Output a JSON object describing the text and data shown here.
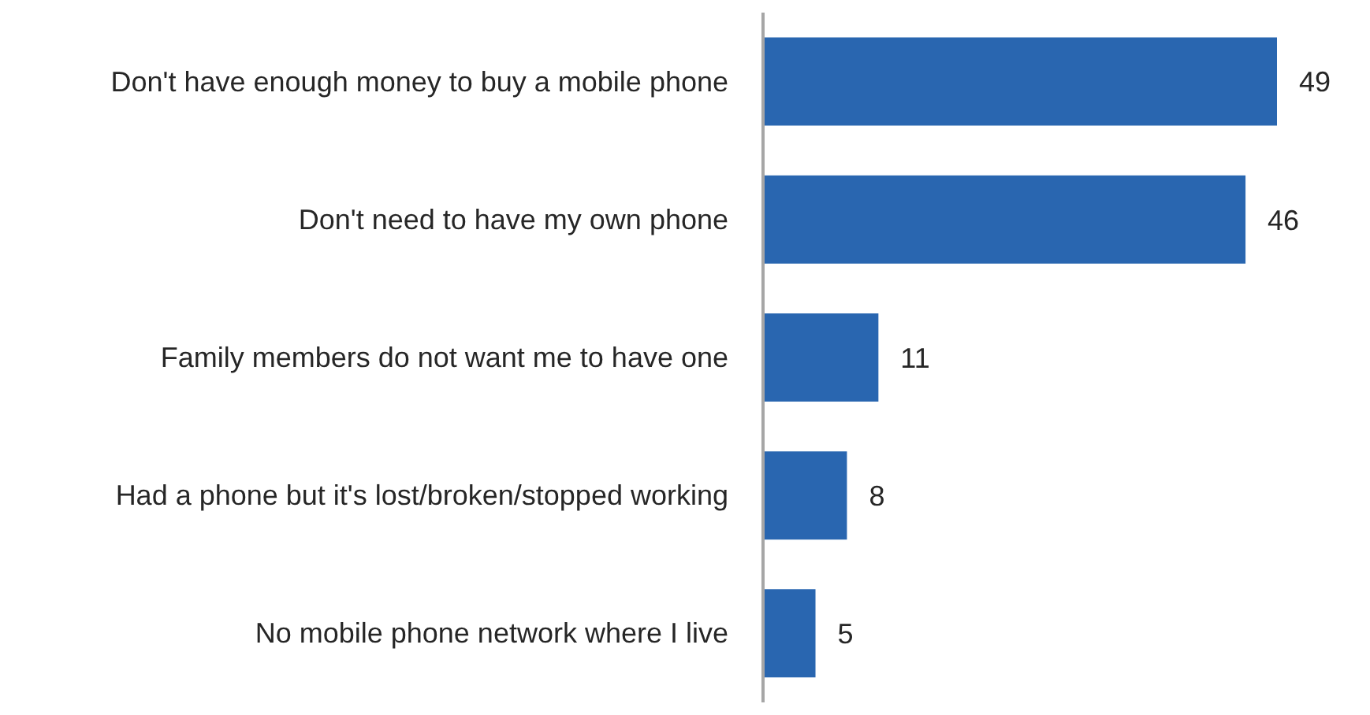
{
  "chart_data": {
    "type": "bar",
    "orientation": "horizontal",
    "categories": [
      "Don't have enough money to buy a mobile phone",
      "Don't need to have my own phone",
      "Family members do not want me to have one",
      "Had a phone but it's lost/broken/stopped working",
      "No mobile phone network where I live"
    ],
    "values": [
      49,
      46,
      11,
      8,
      5
    ],
    "color": "#2966b0",
    "data_labels": true,
    "grid": false,
    "legend": false
  }
}
